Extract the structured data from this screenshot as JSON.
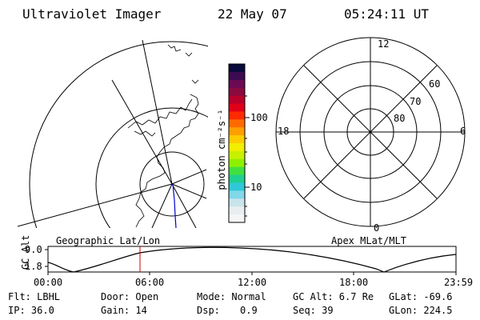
{
  "header": {
    "instrument": "Ultraviolet Imager",
    "date": "22 May 07",
    "time": "05:24:11 UT"
  },
  "colorbar": {
    "label": "photon cm⁻²s⁻¹",
    "ticks": [
      "100",
      "10"
    ],
    "colors": [
      "#0a0a3c",
      "#3c0a50",
      "#6a0a55",
      "#8a0a40",
      "#b8002a",
      "#e00018",
      "#ff2a00",
      "#ff6a00",
      "#ff9e00",
      "#ffcc00",
      "#f2ee00",
      "#c8f000",
      "#8ef000",
      "#40e040",
      "#20d090",
      "#30c8d8",
      "#80d8e8",
      "#c8e4ea",
      "#e8eef0",
      "#f4f6f6"
    ]
  },
  "geo_panel": {
    "label": "Geographic Lat/Lon"
  },
  "mag_panel": {
    "label": "Apex MLat/MLT",
    "mlt_labels": {
      "top": "12",
      "left": "18",
      "right": "6",
      "bottom": "0"
    },
    "lat_labels": [
      "60",
      "70",
      "80"
    ]
  },
  "altitude_plot": {
    "ylabel": "GC Alt",
    "yticks": [
      "9.0",
      "1.8"
    ],
    "xticks": [
      "00:00",
      "06:00",
      "12:00",
      "18:00",
      "23:59"
    ],
    "current_time_marker": "05:24"
  },
  "info": {
    "flt": "Flt: LBHL",
    "door": "Door: Open",
    "mode": "Mode: Normal",
    "gc_alt": "GC Alt: 6.7 Re",
    "glat": "GLat: -69.6",
    "ip": "IP: 36.0",
    "gain": "Gain: 14",
    "dsp_label": "Dsp:",
    "dsp_value": "0.9",
    "seq": "Seq: 39",
    "glon": "GLon: 224.5"
  }
}
